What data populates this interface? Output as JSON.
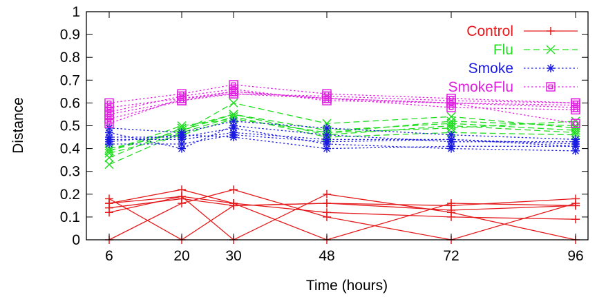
{
  "chart_data": {
    "type": "line",
    "title": "",
    "xlabel": "Time (hours)",
    "ylabel": "Distance",
    "x": [
      6,
      20,
      30,
      48,
      72,
      96
    ],
    "xlim": [
      6,
      96
    ],
    "ylim": [
      0,
      1
    ],
    "x_ticks": [
      6,
      20,
      30,
      48,
      72,
      96
    ],
    "y_ticks": [
      0,
      0.1,
      0.2,
      0.3,
      0.4,
      0.5,
      0.6,
      0.7,
      0.8,
      0.9,
      1
    ],
    "y_tick_labels": [
      "0",
      "0.1",
      "0.2",
      "0.3",
      "0.4",
      "0.5",
      "0.6",
      "0.7",
      "0.8",
      "0.9",
      "1"
    ],
    "legend_position": "top-right",
    "grid": false,
    "groups": [
      {
        "name": "Control",
        "color": "#e41a1c",
        "line_style": "solid",
        "marker": "plus",
        "lines": [
          [
            0.16,
            0.22,
            0.16,
            0.0,
            0.16,
            0.15
          ],
          [
            0.18,
            0.0,
            0.15,
            0.16,
            0.15,
            0.18
          ],
          [
            0.12,
            0.19,
            0.0,
            0.2,
            0.12,
            0.0
          ],
          [
            0.0,
            0.16,
            0.22,
            0.1,
            0.0,
            0.16
          ],
          [
            0.16,
            0.19,
            0.16,
            0.12,
            0.1,
            0.09
          ],
          [
            0.14,
            0.18,
            0.15,
            0.16,
            0.13,
            0.15
          ]
        ]
      },
      {
        "name": "Flu",
        "color": "#22dd22",
        "line_style": "dashed",
        "marker": "x",
        "lines": [
          [
            0.33,
            0.47,
            0.6,
            0.51,
            0.54,
            0.49
          ],
          [
            0.36,
            0.49,
            0.55,
            0.46,
            0.5,
            0.47
          ],
          [
            0.38,
            0.46,
            0.53,
            0.47,
            0.52,
            0.5
          ],
          [
            0.39,
            0.48,
            0.55,
            0.48,
            0.51,
            0.48
          ],
          [
            0.4,
            0.47,
            0.54,
            0.45,
            0.47,
            0.46
          ],
          [
            0.39,
            0.5,
            0.53,
            0.47,
            0.49,
            0.52
          ]
        ]
      },
      {
        "name": "Smoke",
        "color": "#1a1ae0",
        "line_style": "dotted",
        "marker": "star",
        "lines": [
          [
            0.49,
            0.47,
            0.52,
            0.49,
            0.46,
            0.44
          ],
          [
            0.47,
            0.4,
            0.5,
            0.46,
            0.43,
            0.43
          ],
          [
            0.44,
            0.44,
            0.47,
            0.44,
            0.44,
            0.42
          ],
          [
            0.43,
            0.46,
            0.45,
            0.4,
            0.41,
            0.41
          ],
          [
            0.45,
            0.45,
            0.49,
            0.42,
            0.4,
            0.39
          ],
          [
            0.42,
            0.42,
            0.46,
            0.43,
            0.44,
            0.41
          ]
        ]
      },
      {
        "name": "SmokeFlu",
        "color": "#e020e0",
        "line_style": "dotted",
        "marker": "square",
        "lines": [
          [
            0.6,
            0.64,
            0.68,
            0.64,
            0.62,
            0.6
          ],
          [
            0.58,
            0.62,
            0.65,
            0.62,
            0.6,
            0.59
          ],
          [
            0.56,
            0.63,
            0.66,
            0.61,
            0.6,
            0.58
          ],
          [
            0.53,
            0.61,
            0.64,
            0.62,
            0.58,
            0.57
          ],
          [
            0.51,
            0.62,
            0.64,
            0.63,
            0.61,
            0.6
          ],
          [
            0.55,
            0.61,
            0.65,
            0.62,
            0.6,
            0.51
          ]
        ]
      }
    ]
  }
}
